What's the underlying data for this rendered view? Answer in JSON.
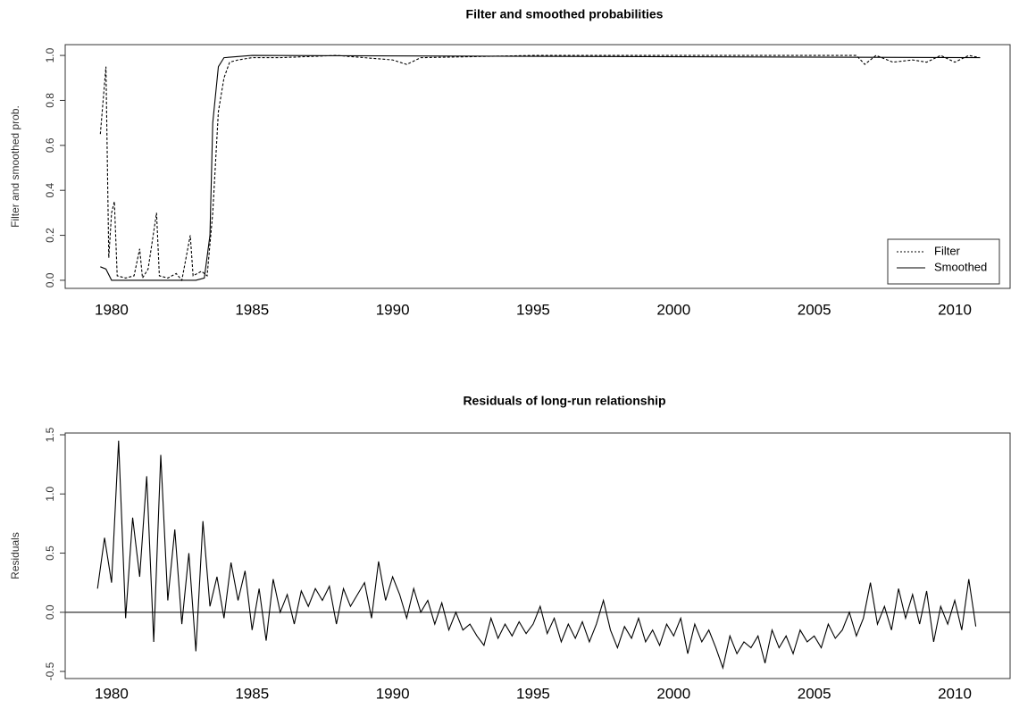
{
  "chart_data": [
    {
      "type": "line",
      "title": "Filter and smoothed probabilities",
      "ylabel": "Filter and smoothed prob.",
      "xlim": [
        1978.35,
        2011.97
      ],
      "ylim": [
        -0.036,
        1.048
      ],
      "xticks": [
        1980,
        1985,
        1990,
        1995,
        2000,
        2005,
        2010
      ],
      "yticks": [
        {
          "value": 0,
          "label": "0.0"
        },
        0.2,
        0.4,
        0.6,
        0.8,
        {
          "value": 1,
          "label": "1.0"
        }
      ],
      "legend": "bottom-right",
      "series": [
        {
          "name": "Filter",
          "color": "#000000",
          "dash": true,
          "x": [
            1979.6,
            1979.7,
            1979.8,
            1979.9,
            1980.0,
            1980.1,
            1980.2,
            1980.5,
            1980.8,
            1981.0,
            1981.1,
            1981.3,
            1981.6,
            1981.7,
            1982.0,
            1982.3,
            1982.5,
            1982.8,
            1982.9,
            1983.2,
            1983.4,
            1983.6,
            1983.8,
            1984.0,
            1984.2,
            1984.5,
            1985,
            1986,
            1988,
            1990,
            1990.5,
            1991,
            1995,
            2000,
            2006.5,
            2006.8,
            2007.2,
            2007.8,
            2008.5,
            2009,
            2009.5,
            2010,
            2010.5,
            2010.9
          ],
          "values": [
            0.65,
            0.8,
            0.95,
            0.1,
            0.3,
            0.35,
            0.02,
            0.01,
            0.02,
            0.14,
            0.01,
            0.05,
            0.3,
            0.02,
            0.01,
            0.03,
            0.0,
            0.2,
            0.02,
            0.04,
            0.02,
            0.3,
            0.75,
            0.9,
            0.97,
            0.98,
            0.99,
            0.99,
            1.0,
            0.98,
            0.96,
            0.99,
            1.0,
            1.0,
            1.0,
            0.96,
            1.0,
            0.97,
            0.98,
            0.97,
            1.0,
            0.97,
            1.0,
            0.99
          ]
        },
        {
          "name": "Smoothed",
          "color": "#000000",
          "dash": false,
          "x": [
            1979.6,
            1979.8,
            1980.0,
            1981,
            1982,
            1983,
            1983.3,
            1983.5,
            1983.6,
            1983.8,
            1984,
            1985,
            2010.9
          ],
          "values": [
            0.06,
            0.05,
            0.0,
            0.0,
            0.0,
            0.0,
            0.01,
            0.2,
            0.7,
            0.95,
            0.99,
            1.0,
            0.99
          ]
        }
      ]
    },
    {
      "type": "line",
      "title": "Residuals of long-run relationship",
      "ylabel": "Residuals",
      "xlim": [
        1978.35,
        2011.97
      ],
      "ylim": [
        -0.56,
        1.515
      ],
      "xticks": [
        1980,
        1985,
        1990,
        1995,
        2000,
        2005,
        2010
      ],
      "yticks": [
        -0.5,
        {
          "value": 0,
          "label": "0.0"
        },
        0.5,
        {
          "value": 1,
          "label": "1.0"
        },
        1.5
      ],
      "reference_line": 0,
      "series": [
        {
          "color": "#000000",
          "dash": false,
          "x": [
            1979.5,
            1979.75,
            1980,
            1980.25,
            1980.5,
            1980.75,
            1981,
            1981.25,
            1981.5,
            1981.75,
            1982,
            1982.25,
            1982.5,
            1982.75,
            1983,
            1983.25,
            1983.5,
            1983.75,
            1984,
            1984.25,
            1984.5,
            1984.75,
            1985,
            1985.25,
            1985.5,
            1985.75,
            1986,
            1986.25,
            1986.5,
            1986.75,
            1987,
            1987.25,
            1987.5,
            1987.75,
            1988,
            1988.25,
            1988.5,
            1988.75,
            1989,
            1989.25,
            1989.5,
            1989.75,
            1990,
            1990.25,
            1990.5,
            1990.75,
            1991,
            1991.25,
            1991.5,
            1991.75,
            1992,
            1992.25,
            1992.5,
            1992.75,
            1993,
            1993.25,
            1993.5,
            1993.75,
            1994,
            1994.25,
            1994.5,
            1994.75,
            1995,
            1995.25,
            1995.5,
            1995.75,
            1996,
            1996.25,
            1996.5,
            1996.75,
            1997,
            1997.25,
            1997.5,
            1997.75,
            1998,
            1998.25,
            1998.5,
            1998.75,
            1999,
            1999.25,
            1999.5,
            1999.75,
            2000,
            2000.25,
            2000.5,
            2000.75,
            2001,
            2001.25,
            2001.5,
            2001.75,
            2002,
            2002.25,
            2002.5,
            2002.75,
            2003,
            2003.25,
            2003.5,
            2003.75,
            2004,
            2004.25,
            2004.5,
            2004.75,
            2005,
            2005.25,
            2005.5,
            2005.75,
            2006,
            2006.25,
            2006.5,
            2006.75,
            2007,
            2007.25,
            2007.5,
            2007.75,
            2008,
            2008.25,
            2008.5,
            2008.75,
            2009,
            2009.25,
            2009.5,
            2009.75,
            2010,
            2010.25,
            2010.5,
            2010.75
          ],
          "values": [
            0.2,
            0.63,
            0.25,
            1.45,
            -0.05,
            0.8,
            0.3,
            1.15,
            -0.25,
            1.33,
            0.1,
            0.7,
            -0.1,
            0.5,
            -0.33,
            0.77,
            0.05,
            0.3,
            -0.05,
            0.42,
            0.1,
            0.35,
            -0.15,
            0.2,
            -0.24,
            0.28,
            0.0,
            0.15,
            -0.1,
            0.18,
            0.05,
            0.2,
            0.1,
            0.22,
            -0.1,
            0.2,
            0.05,
            0.15,
            0.25,
            -0.05,
            0.43,
            0.1,
            0.3,
            0.15,
            -0.05,
            0.2,
            0.0,
            0.1,
            -0.1,
            0.08,
            -0.15,
            0.0,
            -0.15,
            -0.1,
            -0.2,
            -0.28,
            -0.05,
            -0.22,
            -0.1,
            -0.2,
            -0.08,
            -0.18,
            -0.1,
            0.05,
            -0.18,
            -0.05,
            -0.25,
            -0.1,
            -0.22,
            -0.08,
            -0.25,
            -0.1,
            0.1,
            -0.15,
            -0.3,
            -0.12,
            -0.22,
            -0.05,
            -0.25,
            -0.15,
            -0.28,
            -0.1,
            -0.2,
            -0.05,
            -0.35,
            -0.1,
            -0.25,
            -0.15,
            -0.3,
            -0.47,
            -0.2,
            -0.35,
            -0.25,
            -0.3,
            -0.2,
            -0.43,
            -0.15,
            -0.3,
            -0.2,
            -0.35,
            -0.15,
            -0.25,
            -0.2,
            -0.3,
            -0.1,
            -0.22,
            -0.15,
            0.0,
            -0.2,
            -0.05,
            0.25,
            -0.1,
            0.05,
            -0.15,
            0.2,
            -0.05,
            0.15,
            -0.1,
            0.18,
            -0.25,
            0.05,
            -0.1,
            0.1,
            -0.15,
            0.28,
            -0.12
          ]
        }
      ]
    }
  ]
}
